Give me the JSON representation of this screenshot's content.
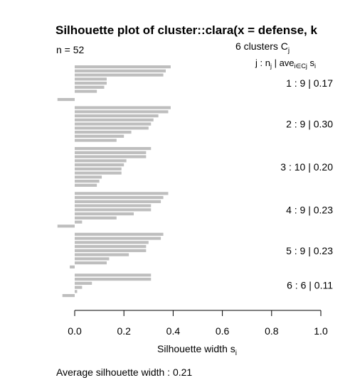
{
  "chart_data": {
    "type": "bar",
    "orientation": "horizontal",
    "title": "Silhouette plot of cluster::clara(x = defense, k",
    "n_label": "n = 52",
    "header": {
      "clusters_line_prefix": "6  clusters  C",
      "clusters_line_sub": "j",
      "columns_j": "j :  n",
      "columns_j_sub": "j",
      "columns_ave": " | ave",
      "columns_ave_sub": "i∈Cj",
      "columns_s": "  s",
      "columns_s_sub": "i"
    },
    "xlabel": "Silhouette width s",
    "xlabel_sub": "i",
    "xlim": [
      0.0,
      1.0
    ],
    "xticks": [
      "0.0",
      "0.2",
      "0.4",
      "0.6",
      "0.8",
      "1.0"
    ],
    "bar_color": "#bebebe",
    "footer": "Average silhouette width :  0.21",
    "clusters": [
      {
        "label": "1 :   9  |  0.17",
        "values": [
          0.39,
          0.37,
          0.36,
          0.13,
          0.13,
          0.12,
          0.09,
          0.0,
          -0.07
        ]
      },
      {
        "label": "2 :   9  |  0.30",
        "values": [
          0.39,
          0.38,
          0.34,
          0.32,
          0.31,
          0.3,
          0.23,
          0.2,
          0.17
        ]
      },
      {
        "label": "3 :   10  |  0.20",
        "values": [
          0.31,
          0.29,
          0.29,
          0.21,
          0.2,
          0.19,
          0.19,
          0.11,
          0.1,
          0.09
        ]
      },
      {
        "label": "4 :   9  |  0.23",
        "values": [
          0.38,
          0.36,
          0.35,
          0.31,
          0.31,
          0.24,
          0.17,
          0.03,
          -0.07
        ]
      },
      {
        "label": "5 :   9  |  0.23",
        "values": [
          0.36,
          0.35,
          0.3,
          0.29,
          0.29,
          0.22,
          0.14,
          0.13,
          -0.02
        ]
      },
      {
        "label": "6 :   6  |  0.11",
        "values": [
          0.31,
          0.31,
          0.07,
          0.03,
          0.01,
          -0.05
        ]
      }
    ]
  }
}
